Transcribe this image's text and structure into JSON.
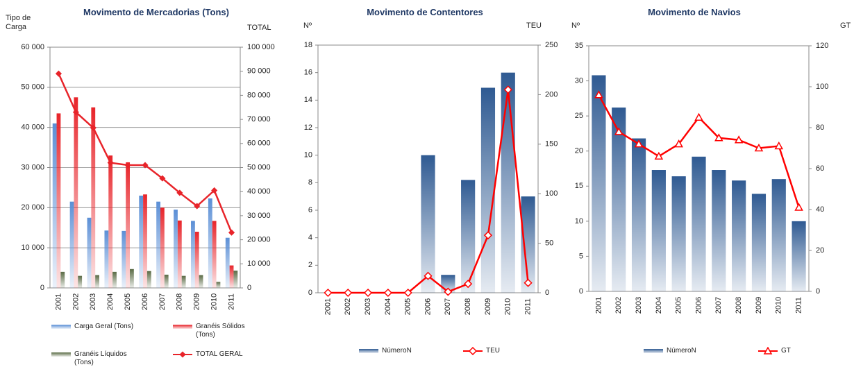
{
  "chart_data": [
    {
      "type": "bar",
      "title": "Movimento de Mercadorias (Tons)",
      "y_label": "Tipo de Carga",
      "y2_label": "TOTAL",
      "categories": [
        "2001",
        "2002",
        "2003",
        "2004",
        "2005",
        "2006",
        "2007",
        "2008",
        "2009",
        "2010",
        "2011"
      ],
      "ylim": [
        0,
        60000
      ],
      "yticks": [
        0,
        {
          "value": 10000,
          "label": "10 000"
        },
        {
          "value": 20000,
          "label": "20 000"
        },
        {
          "value": 30000,
          "label": "30 000"
        },
        {
          "value": 40000,
          "label": "40 000"
        },
        {
          "value": 50000,
          "label": "50 000"
        },
        {
          "value": 60000,
          "label": "60 000"
        }
      ],
      "y2lim": [
        0,
        100000
      ],
      "y2ticks": [
        0,
        {
          "value": 10000,
          "label": "10 000"
        },
        {
          "value": 20000,
          "label": "20 000"
        },
        {
          "value": 30000,
          "label": "30 000"
        },
        {
          "value": 40000,
          "label": "40 000"
        },
        {
          "value": 50000,
          "label": "50 000"
        },
        {
          "value": 60000,
          "label": "60 000"
        },
        {
          "value": 70000,
          "label": "70 000"
        },
        {
          "value": 80000,
          "label": "80 000"
        },
        {
          "value": 90000,
          "label": "90 000"
        },
        {
          "value": 100000,
          "label": "100 000"
        }
      ],
      "grid": true,
      "series": [
        {
          "name": "Carga Geral (Tons)",
          "color": "#5b8fd6",
          "values": [
            41000,
            21500,
            17500,
            14300,
            14200,
            23000,
            21500,
            19500,
            16700,
            22300,
            12500
          ]
        },
        {
          "name": "Granéis Sólidos (Tons)",
          "color": "#e8242a",
          "values": [
            43500,
            47500,
            45000,
            33000,
            31300,
            23300,
            20000,
            16800,
            14000,
            16700,
            5600
          ]
        },
        {
          "name": "Granéis Líquidos (Tons)",
          "color": "#5a6b45",
          "values": [
            4000,
            3000,
            3200,
            4000,
            4700,
            4200,
            3300,
            3000,
            3200,
            1500,
            4300
          ]
        },
        {
          "name": "TOTAL GERAL",
          "color": "#e8242a",
          "type": "line",
          "axis": "y2",
          "marker": "diamond-filled",
          "values": [
            89000,
            73000,
            66500,
            52000,
            51000,
            51000,
            45500,
            39500,
            34000,
            40500,
            23000
          ]
        }
      ]
    },
    {
      "type": "bar",
      "title": "Movimento de Contentores",
      "y_label": "Nº",
      "y2_label": "TEU",
      "categories": [
        "2001",
        "2002",
        "2003",
        "2004",
        "2005",
        "2006",
        "2007",
        "2008",
        "2009",
        "2010",
        "2011"
      ],
      "ylim": [
        0,
        18
      ],
      "yticks": [
        0,
        2,
        4,
        6,
        8,
        10,
        12,
        14,
        16,
        18
      ],
      "y2lim": [
        0,
        250
      ],
      "y2ticks": [
        0,
        50,
        100,
        150,
        200,
        250
      ],
      "grid": false,
      "series": [
        {
          "name": "NúmeroN",
          "color": "#2f5a92",
          "values": [
            0,
            0,
            0,
            0,
            0,
            10,
            1.3,
            8.2,
            14.9,
            16,
            7
          ]
        },
        {
          "name": "TEU",
          "color": "#ff0000",
          "type": "line",
          "axis": "y2",
          "marker": "diamond-hollow",
          "values": [
            0,
            0,
            0,
            0,
            0,
            17,
            1,
            9,
            58,
            205,
            10
          ]
        }
      ]
    },
    {
      "type": "bar",
      "title": "Movimento de Navios",
      "y_label": "Nº",
      "y2_label": "GT",
      "categories": [
        "2001",
        "2002",
        "2003",
        "2004",
        "2005",
        "2006",
        "2007",
        "2008",
        "2009",
        "2010",
        "2011"
      ],
      "ylim": [
        0,
        35
      ],
      "yticks": [
        0,
        5,
        10,
        15,
        20,
        25,
        30,
        35
      ],
      "y2lim": [
        0,
        120
      ],
      "y2ticks": [
        0,
        20,
        40,
        60,
        80,
        100,
        120
      ],
      "grid": false,
      "series": [
        {
          "name": "NúmeroN",
          "color": "#2f5a92",
          "values": [
            30.8,
            26.2,
            21.8,
            17.3,
            16.4,
            19.2,
            17.3,
            15.8,
            13.9,
            16,
            10
          ]
        },
        {
          "name": "GT",
          "color": "#ff0000",
          "type": "line",
          "axis": "y2",
          "marker": "triangle-hollow",
          "values": [
            96,
            78,
            72,
            66,
            72,
            85,
            75,
            74,
            70,
            71,
            41
          ]
        }
      ]
    }
  ]
}
